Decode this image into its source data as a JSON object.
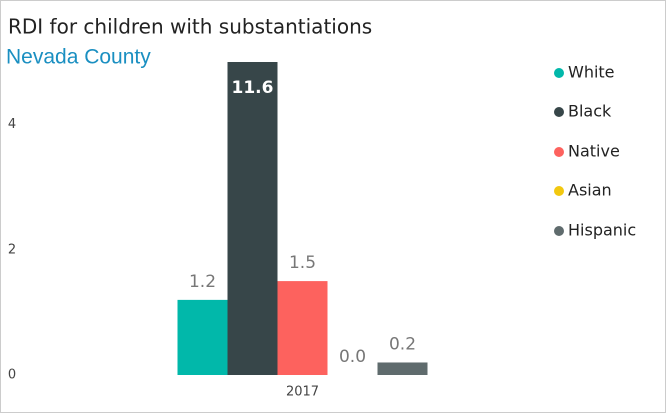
{
  "chart_data": {
    "type": "bar",
    "title": "RDI for children with substantiations",
    "subtitle": "Nevada County",
    "categories": [
      "2017"
    ],
    "series": [
      {
        "name": "White",
        "color": "#01B8AA",
        "values": [
          1.2
        ],
        "value_labels": [
          "1.2"
        ]
      },
      {
        "name": "Black",
        "color": "#374649",
        "values": [
          11.6
        ],
        "value_labels": [
          "11.6"
        ]
      },
      {
        "name": "Native",
        "color": "#FD625E",
        "values": [
          1.5
        ],
        "value_labels": [
          "1.5"
        ]
      },
      {
        "name": "Asian",
        "color": "#F2C80F",
        "values": [
          0
        ],
        "value_labels": [
          "0.0"
        ]
      },
      {
        "name": "Hispanic",
        "color": "#5F6B6D",
        "values": [
          0.2
        ],
        "value_labels": [
          "0.2"
        ]
      }
    ],
    "ylim": [
      0,
      5
    ],
    "yticks": [
      0,
      2,
      4
    ],
    "legend": "right"
  }
}
